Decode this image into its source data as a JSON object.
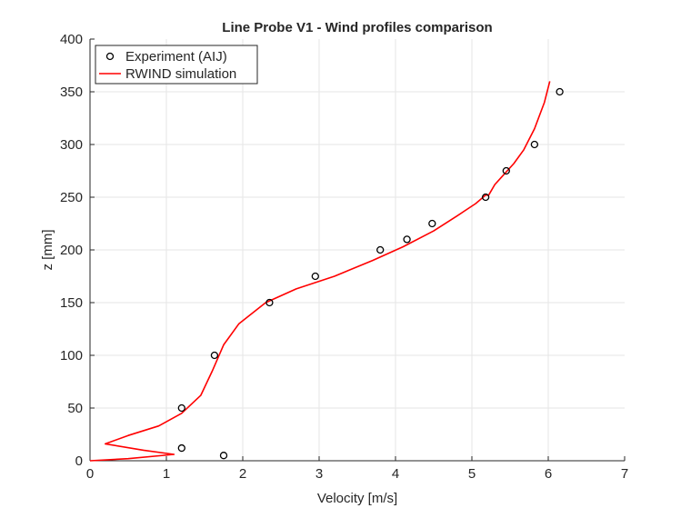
{
  "chart_data": {
    "type": "line",
    "title": "Line Probe V1 - Wind profiles comparison",
    "xlabel": "Velocity [m/s]",
    "ylabel": "z [mm]",
    "xlim": [
      0,
      7
    ],
    "ylim": [
      0,
      400
    ],
    "xticks": [
      "0",
      "1",
      "2",
      "3",
      "4",
      "5",
      "6",
      "7"
    ],
    "yticks": [
      "0",
      "50",
      "100",
      "150",
      "200",
      "250",
      "300",
      "350",
      "400"
    ],
    "grid": true,
    "legend_position": "top-left",
    "series": [
      {
        "name": "Experiment (AIJ)",
        "kind": "scatter",
        "marker": "open-circle",
        "color": "#000000",
        "points": [
          [
            1.75,
            5
          ],
          [
            1.2,
            12
          ],
          [
            1.2,
            50
          ],
          [
            1.63,
            100
          ],
          [
            2.35,
            150
          ],
          [
            2.95,
            175
          ],
          [
            3.8,
            200
          ],
          [
            4.15,
            210
          ],
          [
            4.48,
            225
          ],
          [
            5.18,
            250
          ],
          [
            5.45,
            275
          ],
          [
            5.82,
            300
          ],
          [
            6.15,
            350
          ]
        ]
      },
      {
        "name": "RWIND simulation",
        "kind": "line",
        "color": "#ff0000",
        "points": [
          [
            0.0,
            0
          ],
          [
            0.5,
            2
          ],
          [
            1.1,
            6
          ],
          [
            0.7,
            10
          ],
          [
            0.2,
            16
          ],
          [
            0.5,
            24
          ],
          [
            0.9,
            33
          ],
          [
            1.2,
            45
          ],
          [
            1.45,
            62
          ],
          [
            1.6,
            85
          ],
          [
            1.75,
            110
          ],
          [
            1.95,
            130
          ],
          [
            2.3,
            150
          ],
          [
            2.7,
            163
          ],
          [
            3.2,
            175
          ],
          [
            3.7,
            190
          ],
          [
            4.1,
            203
          ],
          [
            4.5,
            218
          ],
          [
            4.8,
            232
          ],
          [
            5.05,
            244
          ],
          [
            5.18,
            252
          ],
          [
            5.22,
            252
          ],
          [
            5.3,
            262
          ],
          [
            5.4,
            270
          ],
          [
            5.55,
            282
          ],
          [
            5.68,
            295
          ],
          [
            5.82,
            315
          ],
          [
            5.95,
            340
          ],
          [
            6.02,
            360
          ]
        ]
      }
    ]
  }
}
